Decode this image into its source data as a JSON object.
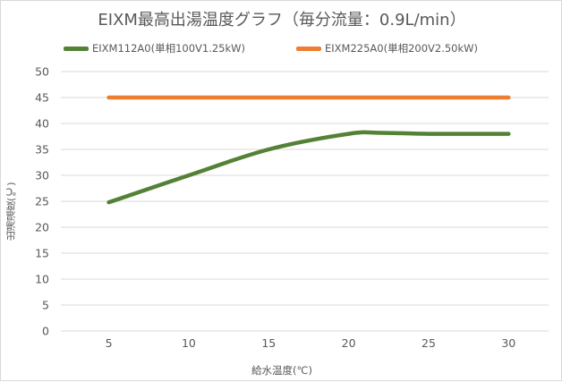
{
  "chart_data": {
    "type": "line",
    "title": "EIXM最高出湯温度グラフ（毎分流量：0.9L/min）",
    "xlabel": "給水温度(℃)",
    "ylabel": "出湯温度(℃)",
    "x": [
      5,
      10,
      15,
      20,
      25,
      30
    ],
    "xlim": [
      2.0,
      32.5
    ],
    "ylim": [
      0,
      50
    ],
    "yticks": [
      0,
      5,
      10,
      15,
      20,
      25,
      30,
      35,
      40,
      45,
      50
    ],
    "grid": "horizontal",
    "legend_position": "top",
    "series": [
      {
        "name": "EIXM112A0(単相100V1.25kW)",
        "color": "#538135",
        "values": [
          24.8,
          30.0,
          35.0,
          38.0,
          38.0,
          38.0
        ],
        "points": [
          [
            5,
            24.8
          ],
          [
            10,
            30.0
          ],
          [
            15,
            35.0
          ],
          [
            20,
            38.0
          ],
          [
            22,
            38.2
          ],
          [
            25,
            38.0
          ],
          [
            30,
            38.0
          ]
        ]
      },
      {
        "name": "EIXM225A0(単相200V2.50kW)",
        "color": "#ED7D31",
        "values": [
          45.0,
          45.0,
          45.0,
          45.0,
          45.0,
          45.0
        ],
        "points": [
          [
            5,
            45.0
          ],
          [
            10,
            45.0
          ],
          [
            15,
            45.0
          ],
          [
            20,
            45.0
          ],
          [
            25,
            45.0
          ],
          [
            30,
            45.0
          ]
        ]
      }
    ]
  },
  "colors": {
    "grid": "#d9d9d9",
    "text": "#595959",
    "border": "#d9d9d9"
  }
}
